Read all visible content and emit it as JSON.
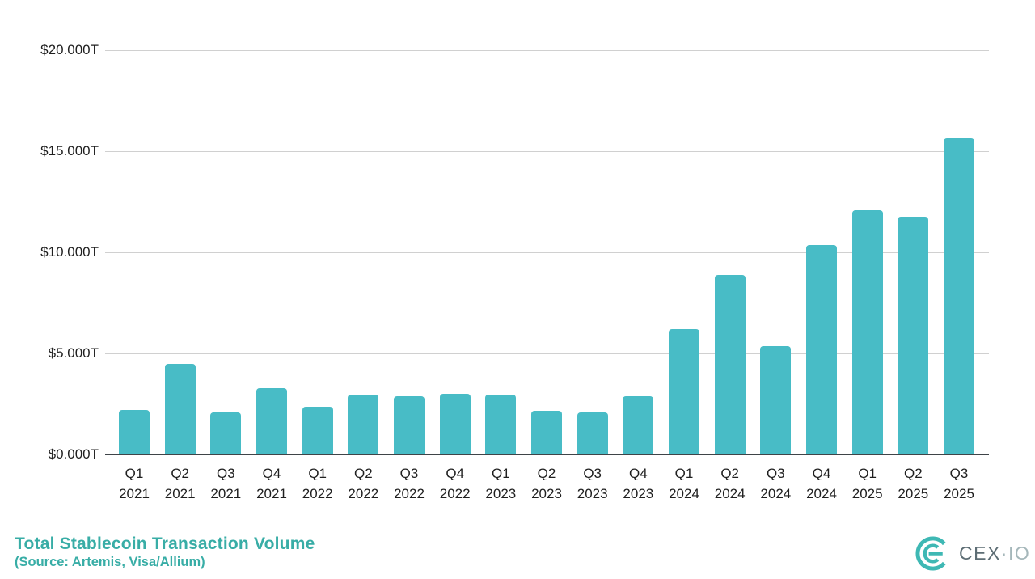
{
  "chart_data": {
    "type": "bar",
    "title": "Total Stablecoin Transaction Volume",
    "subtitle": "(Source: Artemis, Visa/Allium)",
    "unit": "trillions of USD",
    "categories": [
      "Q1 2021",
      "Q2 2021",
      "Q3 2021",
      "Q4 2021",
      "Q1 2022",
      "Q2 2022",
      "Q3 2022",
      "Q4 2022",
      "Q1 2023",
      "Q2 2023",
      "Q3 2023",
      "Q4 2023",
      "Q1 2024",
      "Q2 2024",
      "Q3 2024",
      "Q4 2024",
      "Q1 2025",
      "Q2 2025",
      "Q3 2025"
    ],
    "values": [
      2.2,
      4.5,
      2.1,
      3.3,
      2.35,
      2.95,
      2.9,
      3.0,
      2.95,
      2.15,
      2.1,
      2.9,
      6.2,
      8.9,
      5.35,
      10.35,
      12.1,
      11.75,
      15.65
    ],
    "ylim": [
      0,
      20
    ],
    "ytick_values": [
      20,
      15,
      10,
      5,
      0
    ],
    "ytick_labels": [
      "$20.000T",
      "$15.000T",
      "$10.000T",
      "$5.000T",
      "$0.000T"
    ],
    "xlabel": "",
    "ylabel": "",
    "grid": "horizontal",
    "legend": "none"
  },
  "logo": {
    "text_primary": "CEX",
    "separator": "·",
    "text_secondary": "IO",
    "mark": "cexio-logo-mark"
  },
  "colors": {
    "background": "#ffffff",
    "bar": "#48bcc6",
    "gridline": "#d0d0d0",
    "axis_line": "#3f4448",
    "tick_text": "#1f1f1f",
    "title": "#38ada6",
    "logo_mark": "#3eb8b4",
    "logo_text_primary": "#5d6d74",
    "logo_text_secondary": "#a5b7ba"
  }
}
